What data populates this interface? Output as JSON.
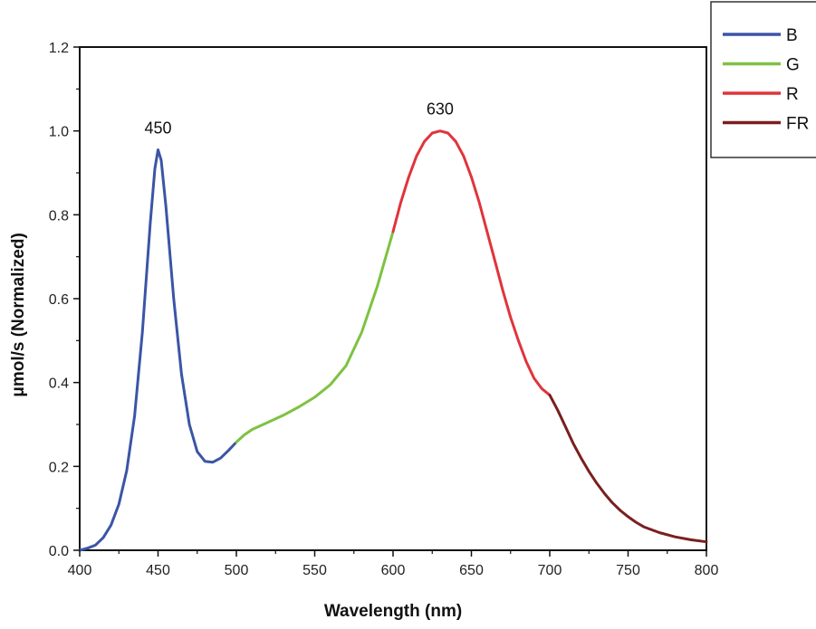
{
  "chart_data": {
    "type": "line",
    "title": "",
    "xlabel": "Wavelength (nm)",
    "ylabel": "μmol/s (Normalized)",
    "xlim": [
      400,
      800
    ],
    "ylim": [
      0,
      1.2
    ],
    "x_ticks": [
      "400",
      "450",
      "500",
      "550",
      "600",
      "650",
      "700",
      "750",
      "800"
    ],
    "y_ticks": [
      "0.0",
      "0.2",
      "0.4",
      "0.6",
      "0.8",
      "1.0",
      "1.2"
    ],
    "grid": false,
    "legend_position": "top-right",
    "annotations": [
      {
        "text": "450",
        "x": 450,
        "y": 0.955
      },
      {
        "text": "630",
        "x": 630,
        "y": 1.0
      }
    ],
    "series": [
      {
        "name": "B",
        "color": "#3b55a6",
        "points": [
          [
            400,
            0.0
          ],
          [
            405,
            0.005
          ],
          [
            410,
            0.012
          ],
          [
            415,
            0.03
          ],
          [
            420,
            0.06
          ],
          [
            425,
            0.11
          ],
          [
            430,
            0.19
          ],
          [
            435,
            0.32
          ],
          [
            440,
            0.52
          ],
          [
            445,
            0.78
          ],
          [
            448,
            0.91
          ],
          [
            450,
            0.955
          ],
          [
            452,
            0.93
          ],
          [
            455,
            0.82
          ],
          [
            460,
            0.6
          ],
          [
            465,
            0.42
          ],
          [
            470,
            0.3
          ],
          [
            475,
            0.235
          ],
          [
            480,
            0.212
          ],
          [
            485,
            0.21
          ],
          [
            490,
            0.22
          ],
          [
            495,
            0.238
          ],
          [
            500,
            0.258
          ]
        ]
      },
      {
        "name": "G",
        "color": "#7ec241",
        "points": [
          [
            500,
            0.258
          ],
          [
            505,
            0.275
          ],
          [
            510,
            0.288
          ],
          [
            520,
            0.305
          ],
          [
            530,
            0.322
          ],
          [
            540,
            0.342
          ],
          [
            550,
            0.365
          ],
          [
            560,
            0.395
          ],
          [
            570,
            0.44
          ],
          [
            580,
            0.52
          ],
          [
            590,
            0.63
          ],
          [
            600,
            0.76
          ]
        ]
      },
      {
        "name": "R",
        "color": "#e0343a",
        "points": [
          [
            600,
            0.76
          ],
          [
            605,
            0.83
          ],
          [
            610,
            0.89
          ],
          [
            615,
            0.94
          ],
          [
            620,
            0.975
          ],
          [
            625,
            0.995
          ],
          [
            630,
            1.0
          ],
          [
            635,
            0.995
          ],
          [
            640,
            0.975
          ],
          [
            645,
            0.94
          ],
          [
            650,
            0.89
          ],
          [
            655,
            0.83
          ],
          [
            660,
            0.76
          ],
          [
            665,
            0.69
          ],
          [
            670,
            0.62
          ],
          [
            675,
            0.555
          ],
          [
            680,
            0.5
          ],
          [
            685,
            0.45
          ],
          [
            690,
            0.41
          ],
          [
            695,
            0.385
          ],
          [
            700,
            0.37
          ]
        ]
      },
      {
        "name": "FR",
        "color": "#7a1f1f",
        "points": [
          [
            700,
            0.37
          ],
          [
            705,
            0.335
          ],
          [
            710,
            0.295
          ],
          [
            715,
            0.255
          ],
          [
            720,
            0.22
          ],
          [
            725,
            0.188
          ],
          [
            730,
            0.16
          ],
          [
            735,
            0.135
          ],
          [
            740,
            0.113
          ],
          [
            745,
            0.095
          ],
          [
            750,
            0.08
          ],
          [
            755,
            0.067
          ],
          [
            760,
            0.056
          ],
          [
            770,
            0.042
          ],
          [
            780,
            0.032
          ],
          [
            790,
            0.025
          ],
          [
            800,
            0.02
          ]
        ]
      }
    ]
  }
}
